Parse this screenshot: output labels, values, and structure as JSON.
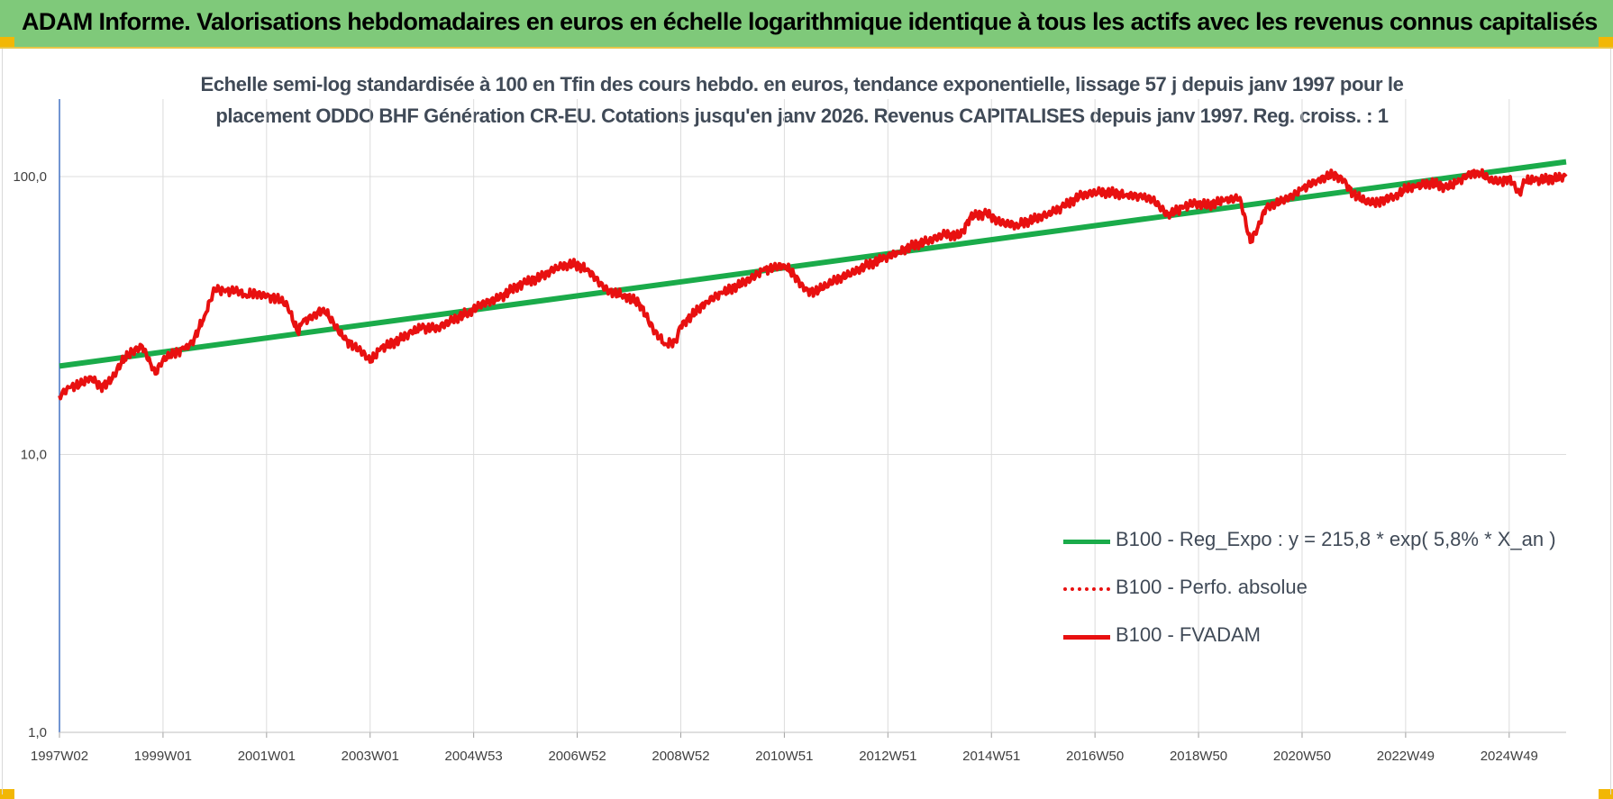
{
  "header": {
    "title": "ADAM Informe. Valorisations hebdomadaires en euros en échelle logarithmique identique à tous les actifs avec les revenus connus capitalisés"
  },
  "subtitle": {
    "line1": "Echelle semi-log standardisée à 100 en Tfin des cours hebdo. en euros, tendance exponentielle, lissage 57 j depuis janv 1997 pour le",
    "line2": "placement ODDO BHF Génération CR-EU. Cotations jusqu'en janv 2026.  Revenus CAPITALISES  depuis janv 1997. Reg. croiss. : 1"
  },
  "colors": {
    "header_bg": "#7fc97a",
    "corner": "#f2b705",
    "trend": "#1aab4a",
    "series": "#e81010",
    "grid": "#dcdcdc",
    "axis": "#4472c4"
  },
  "chart_data": {
    "type": "line",
    "y_scale": "log",
    "ylim": [
      1,
      190
    ],
    "y_ticks": [
      "100,0",
      "10,0",
      "1,0"
    ],
    "y_tick_values": [
      100,
      10,
      1
    ],
    "x_range": [
      1997.0,
      2026.1
    ],
    "x_tick_labels": [
      "1997W02",
      "1999W01",
      "2001W01",
      "2003W01",
      "2004W53",
      "2006W52",
      "2008W52",
      "2010W51",
      "2012W51",
      "2014W51",
      "2016W50",
      "2018W50",
      "2020W50",
      "2022W49",
      "2024W49"
    ],
    "x_tick_values": [
      1997.0,
      1999.0,
      2001.0,
      2003.0,
      2005.0,
      2007.0,
      2009.0,
      2011.0,
      2013.0,
      2015.0,
      2017.0,
      2019.0,
      2021.0,
      2023.0,
      2025.0
    ],
    "grid": true,
    "legend_position": "bottom-right",
    "series": [
      {
        "name": "B100 - Reg_Expo : y = 215,8 * exp( 5,8% *  X_an )",
        "style": "solid-green",
        "x": [
          1997.0,
          2026.1
        ],
        "y": [
          20.8,
          113.0
        ]
      },
      {
        "name": "B100 - Perfo. absolue",
        "style": "dotted-red",
        "x": [],
        "y": []
      },
      {
        "name": "B100 - FVADAM",
        "style": "solid-red",
        "x": [
          1997.0,
          1997.2,
          1997.4,
          1997.6,
          1997.8,
          1998.0,
          1998.2,
          1998.4,
          1998.6,
          1998.75,
          1998.85,
          1999.0,
          1999.2,
          1999.4,
          1999.5,
          1999.6,
          1999.8,
          2000.0,
          2000.2,
          2000.4,
          2000.6,
          2000.8,
          2001.0,
          2001.2,
          2001.4,
          2001.6,
          2001.7,
          2001.9,
          2002.1,
          2002.3,
          2002.5,
          2002.7,
          2002.9,
          2003.0,
          2003.2,
          2003.5,
          2003.8,
          2004.0,
          2004.3,
          2004.6,
          2004.9,
          2005.2,
          2005.5,
          2005.8,
          2006.0,
          2006.3,
          2006.6,
          2006.9,
          2007.2,
          2007.5,
          2007.7,
          2007.9,
          2008.2,
          2008.5,
          2008.7,
          2008.9,
          2009.0,
          2009.2,
          2009.5,
          2009.8,
          2010.1,
          2010.4,
          2010.6,
          2010.8,
          2011.0,
          2011.2,
          2011.4,
          2011.6,
          2011.8,
          2012.0,
          2012.3,
          2012.6,
          2012.9,
          2013.2,
          2013.5,
          2013.8,
          2014.1,
          2014.4,
          2014.6,
          2014.9,
          2015.2,
          2015.5,
          2015.8,
          2016.1,
          2016.4,
          2016.7,
          2017.0,
          2017.3,
          2017.6,
          2017.9,
          2018.1,
          2018.4,
          2018.7,
          2018.9,
          2019.2,
          2019.5,
          2019.8,
          2020.0,
          2020.15,
          2020.3,
          2020.5,
          2020.8,
          2021.0,
          2021.3,
          2021.6,
          2021.8,
          2022.0,
          2022.2,
          2022.4,
          2022.6,
          2022.8,
          2023.0,
          2023.2,
          2023.5,
          2023.8,
          2024.0,
          2024.2,
          2024.4,
          2024.6,
          2024.8,
          2025.0,
          2025.2,
          2025.3,
          2025.5,
          2025.8,
          2026.1
        ],
        "y": [
          16.3,
          17.4,
          17.8,
          19.0,
          17.5,
          18.5,
          21.5,
          23.5,
          24.5,
          21.5,
          19.5,
          22.0,
          23.0,
          24.0,
          24.5,
          26.0,
          31.5,
          39.5,
          38.5,
          39.0,
          37.5,
          38.0,
          37.0,
          36.5,
          34.5,
          27.5,
          30.0,
          31.5,
          33.5,
          29.5,
          26.0,
          24.5,
          23.0,
          21.5,
          24.0,
          25.5,
          27.5,
          28.5,
          28.5,
          30.5,
          32.5,
          35.0,
          36.5,
          40.0,
          41.5,
          43.5,
          47.0,
          48.5,
          46.5,
          40.0,
          38.0,
          37.5,
          35.0,
          27.5,
          25.0,
          25.5,
          29.0,
          31.5,
          35.5,
          38.0,
          40.5,
          43.5,
          46.0,
          47.0,
          48.0,
          44.0,
          39.0,
          38.5,
          40.5,
          42.5,
          45.0,
          48.0,
          50.5,
          53.5,
          56.5,
          59.0,
          62.0,
          61.0,
          72.0,
          73.5,
          68.0,
          67.0,
          70.0,
          73.5,
          78.0,
          85.0,
          88.0,
          87.5,
          86.0,
          84.5,
          83.0,
          73.0,
          77.0,
          80.0,
          79.0,
          82.0,
          84.0,
          58.0,
          66.0,
          77.0,
          80.0,
          85.0,
          90.0,
          97.0,
          102.0,
          97.0,
          86.0,
          82.0,
          80.0,
          83.0,
          85.0,
          90.0,
          92.0,
          95.0,
          91.0,
          95.0,
          102.0,
          104.0,
          98.0,
          95.0,
          99.0,
          87.0,
          96.0,
          97.0,
          98.0,
          100.0
        ]
      }
    ]
  }
}
